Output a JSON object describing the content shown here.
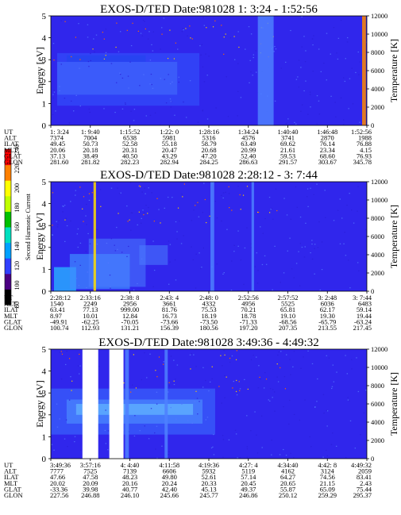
{
  "chart_data": {
    "type": "heatmap",
    "colorbar": {
      "label": "Second Harmonic Current",
      "ticks": [
        "80",
        "100",
        "120",
        "140",
        "160",
        "180",
        "200",
        "220",
        "240"
      ],
      "colors": [
        "#000000",
        "#4b0082",
        "#3040ff",
        "#00a0ff",
        "#00e0c0",
        "#00c000",
        "#c0ff00",
        "#ffff00",
        "#ff8000",
        "#ff0000"
      ]
    },
    "panels": [
      {
        "title": "EXOS-D/TED   Date:981028   1: 3:24 - 1:52:56",
        "ylabel": "Energy [eV]",
        "y2label": "Temperature [K]",
        "ylim": [
          0,
          5
        ],
        "y2lim": [
          0,
          12000
        ],
        "yticks": [
          "0",
          "1",
          "2",
          "3",
          "4",
          "5"
        ],
        "y2ticks": [
          "0",
          "2000",
          "4000",
          "6000",
          "8000",
          "10000",
          "12000"
        ],
        "rows": [
          {
            "label": "UT",
            "values": [
              "1: 3:24",
              "1: 9:40",
              "1:15:52",
              "1:22: 0",
              "1:28:16",
              "1:34:24",
              "1:40:40",
              "1:46:48",
              "1:52:56"
            ]
          },
          {
            "label": "ALT",
            "values": [
              "7374",
              "7004",
              "6538",
              "5981",
              "5316",
              "4576",
              "3741",
              "2870",
              "1988"
            ]
          },
          {
            "label": "ILAT",
            "values": [
              "49.45",
              "50.73",
              "52.58",
              "55.18",
              "58.79",
              "63.49",
              "69.62",
              "76.14",
              "76.88"
            ]
          },
          {
            "label": "MLT",
            "values": [
              "20.06",
              "20.18",
              "20.31",
              "20.47",
              "20.68",
              "20.99",
              "21.61",
              "23.34",
              "4.15"
            ]
          },
          {
            "label": "GLAT",
            "values": [
              "37.13",
              "38.49",
              "40.50",
              "43.29",
              "47.20",
              "52.40",
              "59.53",
              "68.60",
              "76.93"
            ]
          },
          {
            "label": "GLON",
            "values": [
              "281.60",
              "281.82",
              "282.23",
              "282.94",
              "284.25",
              "286.63",
              "291.57",
              "303.67",
              "345.78"
            ]
          }
        ]
      },
      {
        "title": "EXOS-D/TED   Date:981028   2:28:12 - 3: 7:44",
        "ylabel": "Energy [eV]",
        "y2label": "Temperature [K]",
        "ylim": [
          0,
          5
        ],
        "y2lim": [
          0,
          12000
        ],
        "yticks": [
          "0",
          "1",
          "2",
          "3",
          "4",
          "5"
        ],
        "y2ticks": [
          "0",
          "2000",
          "4000",
          "6000",
          "8000",
          "10000",
          "12000"
        ],
        "rows": [
          {
            "label": "UT",
            "values": [
              "2:28:12",
              "2:33:16",
              "2:38: 8",
              "2:43: 4",
              "2:48: 0",
              "2:52:56",
              "2:57:52",
              "3: 2:48",
              "3: 7:44"
            ]
          },
          {
            "label": "ALT",
            "values": [
              "1540",
              "2249",
              "2956",
              "3661",
              "4332",
              "4956",
              "5525",
              "6036",
              "6483"
            ]
          },
          {
            "label": "ILAT",
            "values": [
              "63.41",
              "77.13",
              "999.00",
              "81.76",
              "75.53",
              "70.21",
              "65.81",
              "62.17",
              "59.14"
            ]
          },
          {
            "label": "MLT",
            "values": [
              "8.97",
              "10.01",
              "12.84",
              "16.73",
              "18.19",
              "18.78",
              "19.10",
              "19.30",
              "19.44"
            ]
          },
          {
            "label": "GLAT",
            "values": [
              "-49.91",
              "-62.25",
              "-70.05",
              "-73.66",
              "-73.50",
              "-71.33",
              "-68.56",
              "-65.79",
              "-63.24"
            ]
          },
          {
            "label": "GLON",
            "values": [
              "100.74",
              "112.93",
              "131.21",
              "156.39",
              "180.56",
              "197.20",
              "207.35",
              "213.55",
              "217.45"
            ]
          }
        ]
      },
      {
        "title": "EXOS-D/TED   Date:981028   3:49:36 - 4:49:32",
        "ylabel": "Energy [eV]",
        "y2label": "Temperature [K]",
        "ylim": [
          0,
          5
        ],
        "y2lim": [
          0,
          12000
        ],
        "yticks": [
          "0",
          "1",
          "2",
          "3",
          "4",
          "5"
        ],
        "y2ticks": [
          "0",
          "2000",
          "4000",
          "6000",
          "8000",
          "10000",
          "12000"
        ],
        "rows": [
          {
            "label": "UT",
            "values": [
              "3:49:36",
              "3:57:16",
              "4: 4:40",
              "4:11:58",
              "4:19:36",
              "4:27: 4",
              "4:34:40",
              "4:42: 8",
              "4:49:32"
            ]
          },
          {
            "label": "ALT",
            "values": [
              "7777",
              "7525",
              "7139",
              "6606",
              "5932",
              "5119",
              "4162",
              "3124",
              "2059"
            ]
          },
          {
            "label": "ILAT",
            "values": [
              "47.66",
              "47.58",
              "48.23",
              "49.80",
              "52.61",
              "57.14",
              "64.27",
              "74.56",
              "83.41"
            ]
          },
          {
            "label": "MLT",
            "values": [
              "20.02",
              "20.09",
              "20.16",
              "20.24",
              "20.33",
              "20.45",
              "20.65",
              "21.15",
              "2.43"
            ]
          },
          {
            "label": "GLAT",
            "values": [
              "-33.36",
              "39.98",
              "40.77",
              "42.40",
              "45.13",
              "49.37",
              "55.87",
              "65.09",
              "75.44"
            ]
          },
          {
            "label": "GLON",
            "values": [
              "227.56",
              "246.88",
              "246.10",
              "245.66",
              "245.77",
              "246.86",
              "250.12",
              "259.29",
              "295.37"
            ]
          }
        ]
      }
    ]
  }
}
